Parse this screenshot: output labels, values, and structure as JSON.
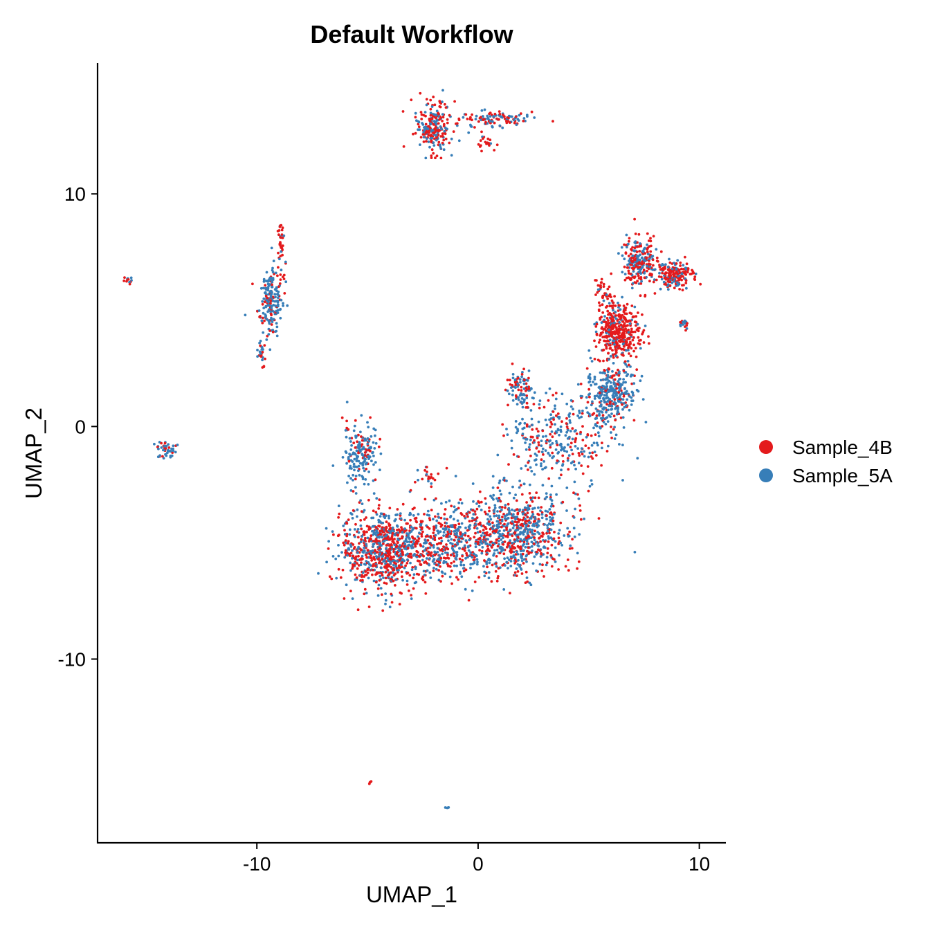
{
  "chart_data": {
    "type": "scatter",
    "title": "Default Workflow",
    "xlabel": "UMAP_1",
    "ylabel": "UMAP_2",
    "xlim": [
      -17.2,
      11.2
    ],
    "ylim": [
      -17.9,
      15.6
    ],
    "xticks": [
      -10,
      0,
      10
    ],
    "yticks": [
      -10,
      0,
      10
    ],
    "xtick_labels": [
      "-10",
      "0",
      "10"
    ],
    "ytick_labels": [
      "-10",
      "0",
      "10"
    ],
    "grid": false,
    "legend_position": "right",
    "series": [
      {
        "name": "Sample_4B",
        "color": "#E41A1C"
      },
      {
        "name": "Sample_5A",
        "color": "#377EB8"
      }
    ],
    "clusters": [
      {
        "center": [
          -2.0,
          12.9
        ],
        "spread": [
          0.5,
          0.7
        ],
        "n": 220,
        "fraction_sample_4b": 0.55
      },
      {
        "center": [
          0.5,
          13.2
        ],
        "spread": [
          1.1,
          0.25
        ],
        "n": 110,
        "fraction_sample_4b": 0.45
      },
      {
        "center": [
          0.3,
          12.2
        ],
        "spread": [
          0.3,
          0.15
        ],
        "n": 20,
        "fraction_sample_4b": 0.9
      },
      {
        "center": [
          -15.8,
          6.3
        ],
        "spread": [
          0.12,
          0.1
        ],
        "n": 12,
        "fraction_sample_4b": 0.5
      },
      {
        "center": [
          -9.4,
          5.4
        ],
        "spread": [
          0.35,
          0.9
        ],
        "n": 200,
        "fraction_sample_4b": 0.25
      },
      {
        "center": [
          -8.9,
          7.9
        ],
        "spread": [
          0.12,
          0.7
        ],
        "n": 40,
        "fraction_sample_4b": 0.7
      },
      {
        "center": [
          -9.8,
          3.1
        ],
        "spread": [
          0.12,
          0.35
        ],
        "n": 25,
        "fraction_sample_4b": 0.4
      },
      {
        "center": [
          -14.1,
          -1.0
        ],
        "spread": [
          0.3,
          0.25
        ],
        "n": 45,
        "fraction_sample_4b": 0.3
      },
      {
        "center": [
          -5.3,
          -1.2
        ],
        "spread": [
          0.5,
          0.8
        ],
        "n": 180,
        "fraction_sample_4b": 0.2
      },
      {
        "center": [
          -2.2,
          -2.1
        ],
        "spread": [
          0.2,
          0.3
        ],
        "n": 20,
        "fraction_sample_4b": 0.6
      },
      {
        "center": [
          -4.1,
          -5.3
        ],
        "spread": [
          1.3,
          1.1
        ],
        "n": 900,
        "fraction_sample_4b": 0.55
      },
      {
        "center": [
          -1.3,
          -5.0
        ],
        "spread": [
          1.0,
          1.0
        ],
        "n": 300,
        "fraction_sample_4b": 0.5
      },
      {
        "center": [
          1.6,
          -4.6
        ],
        "spread": [
          1.6,
          1.1
        ],
        "n": 800,
        "fraction_sample_4b": 0.45
      },
      {
        "center": [
          3.7,
          -0.5
        ],
        "spread": [
          1.5,
          1.3
        ],
        "n": 320,
        "fraction_sample_4b": 0.3
      },
      {
        "center": [
          1.9,
          1.6
        ],
        "spread": [
          0.35,
          0.45
        ],
        "n": 90,
        "fraction_sample_4b": 0.4
      },
      {
        "center": [
          6.0,
          1.4
        ],
        "spread": [
          0.7,
          0.7
        ],
        "n": 320,
        "fraction_sample_4b": 0.2
      },
      {
        "center": [
          6.3,
          4.0
        ],
        "spread": [
          0.6,
          0.8
        ],
        "n": 400,
        "fraction_sample_4b": 0.85
      },
      {
        "center": [
          7.3,
          7.1
        ],
        "spread": [
          0.5,
          0.6
        ],
        "n": 250,
        "fraction_sample_4b": 0.55
      },
      {
        "center": [
          8.9,
          6.5
        ],
        "spread": [
          0.5,
          0.35
        ],
        "n": 200,
        "fraction_sample_4b": 0.7
      },
      {
        "center": [
          5.7,
          5.7
        ],
        "spread": [
          0.3,
          0.4
        ],
        "n": 40,
        "fraction_sample_4b": 0.85
      },
      {
        "center": [
          9.3,
          4.5
        ],
        "spread": [
          0.15,
          0.2
        ],
        "n": 15,
        "fraction_sample_4b": 0.5
      },
      {
        "center": [
          -4.9,
          -15.3
        ],
        "spread": [
          0.05,
          0.05
        ],
        "n": 4,
        "fraction_sample_4b": 1.0
      },
      {
        "center": [
          -1.4,
          -16.4
        ],
        "spread": [
          0.05,
          0.05
        ],
        "n": 4,
        "fraction_sample_4b": 0.0
      }
    ]
  }
}
